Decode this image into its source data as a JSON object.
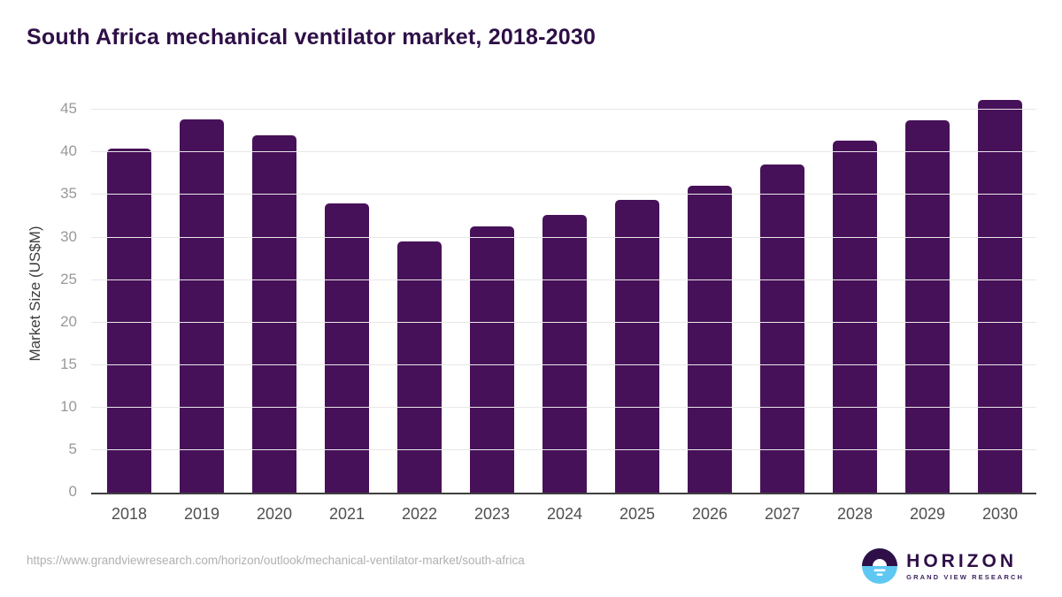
{
  "title": "South Africa mechanical ventilator market, 2018-2030",
  "chart_data": {
    "type": "bar",
    "title": "South Africa mechanical ventilator market, 2018-2030",
    "categories": [
      "2018",
      "2019",
      "2020",
      "2021",
      "2022",
      "2023",
      "2024",
      "2025",
      "2026",
      "2027",
      "2028",
      "2029",
      "2030"
    ],
    "values": [
      40.5,
      43.9,
      42.0,
      34.0,
      29.5,
      31.3,
      32.7,
      34.4,
      36.1,
      38.6,
      41.4,
      43.8,
      46.2
    ],
    "xlabel": "",
    "ylabel": "Market Size (US$M)",
    "ylim": [
      0,
      47
    ],
    "y_ticks": [
      0,
      5,
      10,
      15,
      20,
      25,
      30,
      35,
      40,
      45
    ],
    "grid": "horizontal",
    "legend": "none",
    "bar_color": "#471159"
  },
  "colors": {
    "title": "#2e0f47",
    "bar": "#471159",
    "gridline": "#e8e8e8",
    "axis_line": "#3f3f3f",
    "y_tick_text": "#999999",
    "x_tick_text": "#4f4f4f",
    "url_text": "#b0b0b0",
    "logo_purple": "#2e0f47",
    "logo_blue": "#5ec8f2"
  },
  "footer": {
    "source_url": "https://www.grandviewresearch.com/horizon/outlook/mechanical-ventilator-market/south-africa",
    "logo": {
      "name": "HORIZON",
      "tagline": "GRAND VIEW RESEARCH"
    }
  }
}
